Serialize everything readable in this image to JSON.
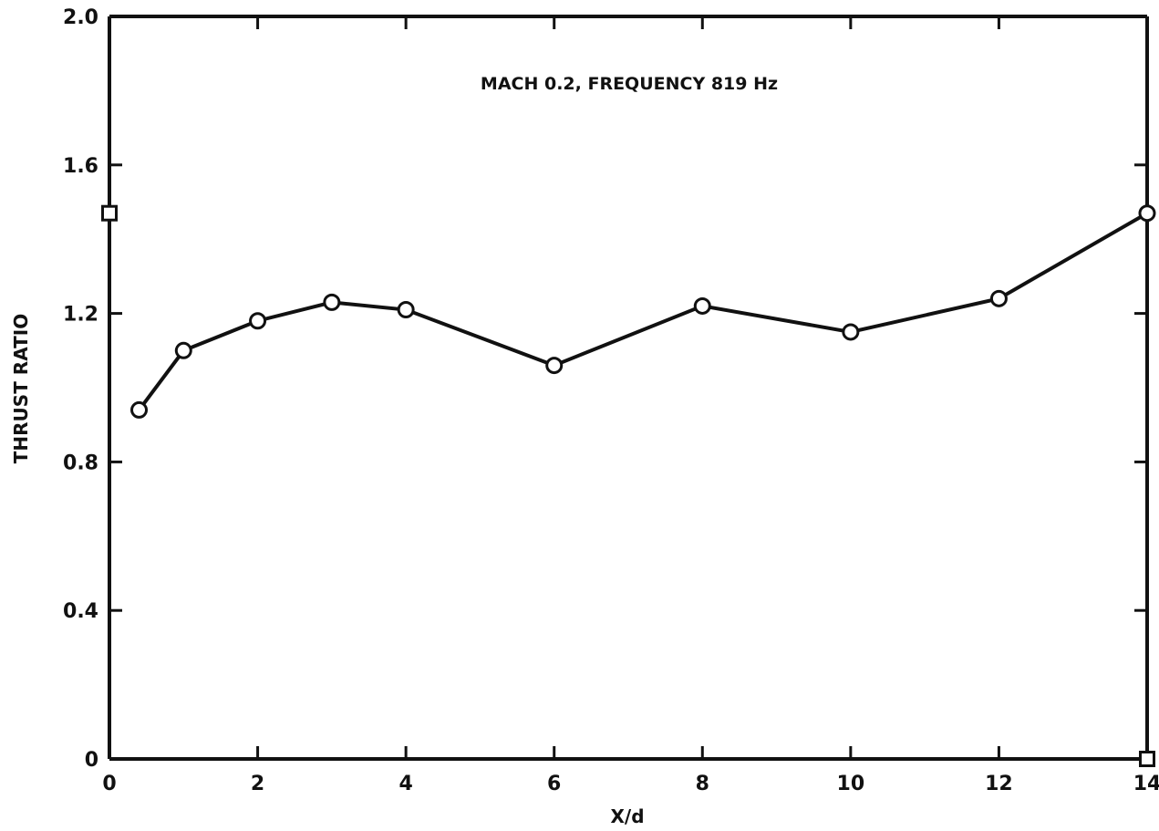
{
  "chart_data": {
    "type": "line",
    "title": "",
    "annotation": "MACH 0.2,  FREQUENCY 819 Hz",
    "xlabel": "X/d",
    "ylabel": "THRUST RATIO",
    "xlim": [
      0,
      14
    ],
    "ylim": [
      0,
      2.0
    ],
    "x_ticks": [
      0,
      2,
      4,
      6,
      8,
      10,
      12,
      14
    ],
    "y_ticks": [
      0,
      0.4,
      0.8,
      1.2,
      1.6,
      2.0
    ],
    "x_tick_labels": [
      "0",
      "2",
      "4",
      "6",
      "8",
      "10",
      "12",
      "14"
    ],
    "y_tick_labels": [
      "0",
      "0.4",
      "0.8",
      "1.2",
      "1.6",
      "2.0"
    ],
    "grid": false,
    "series": [
      {
        "marker": "circle",
        "connected": true,
        "x": [
          0.4,
          1,
          2,
          3,
          4,
          6,
          8,
          10,
          12,
          14
        ],
        "y": [
          0.94,
          1.1,
          1.18,
          1.23,
          1.21,
          1.06,
          1.22,
          1.15,
          1.24,
          1.47
        ]
      },
      {
        "marker": "square",
        "connected": false,
        "x": [
          0,
          14
        ],
        "y": [
          1.47,
          0.0
        ]
      }
    ]
  }
}
